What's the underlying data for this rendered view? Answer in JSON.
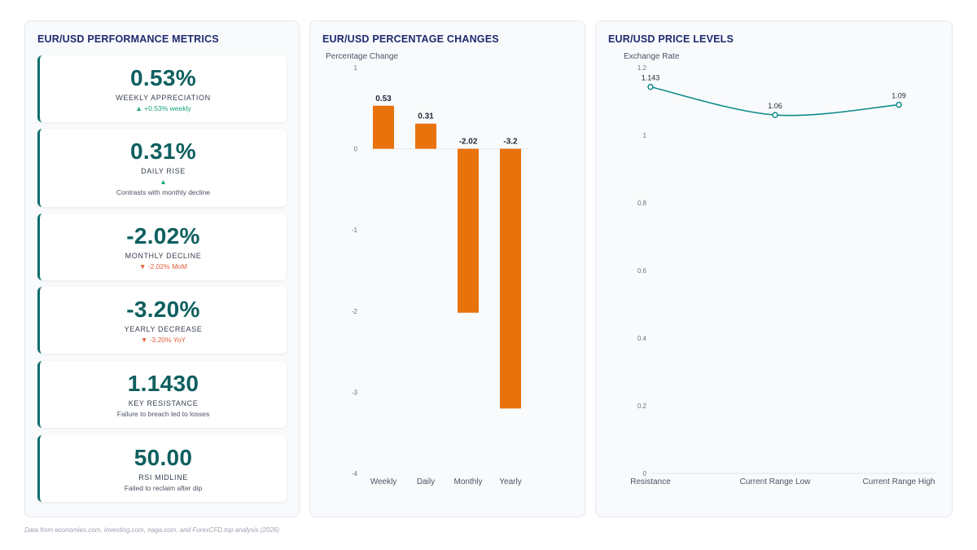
{
  "panels": {
    "metrics_title": "EUR/USD PERFORMANCE METRICS",
    "changes_title": "EUR/USD PERCENTAGE CHANGES",
    "levels_title": "EUR/USD PRICE LEVELS"
  },
  "cards": [
    {
      "value": "0.53%",
      "label": "WEEKLY APPRECIATION",
      "sub": "▲ +0.53% weekly",
      "trend": "up"
    },
    {
      "value": "0.31%",
      "label": "DAILY RISE",
      "sub": "▲",
      "sub2": "Contrasts with monthly decline",
      "trend": "up"
    },
    {
      "value": "-2.02%",
      "label": "MONTHLY DECLINE",
      "sub": "▼ -2.02% MoM",
      "trend": "down"
    },
    {
      "value": "-3.20%",
      "label": "YEARLY DECREASE",
      "sub": "▼ -3.20% YoY",
      "trend": "down"
    },
    {
      "value": "1.1430",
      "label": "KEY RESISTANCE",
      "sub": "Failure to breach led to losses",
      "trend": "neutral"
    },
    {
      "value": "50.00",
      "label": "RSI MIDLINE",
      "sub": "Failed to reclaim after dip",
      "trend": "neutral"
    }
  ],
  "chart_data": [
    {
      "type": "bar",
      "title": "EUR/USD PERCENTAGE CHANGES",
      "ylabel": "Percentage Change",
      "categories": [
        "Weekly",
        "Daily",
        "Monthly",
        "Yearly"
      ],
      "values": [
        0.53,
        0.31,
        -2.02,
        -3.2
      ],
      "value_labels": [
        "0.53",
        "0.31",
        "-2.02",
        "-3.2"
      ],
      "ylim": [
        -4,
        1
      ],
      "yticks": [
        "1",
        "0",
        "-1",
        "-2",
        "-3",
        "-4"
      ],
      "color": "#e8720c",
      "grid": false
    },
    {
      "type": "line",
      "title": "EUR/USD PRICE LEVELS",
      "ylabel": "Exchange Rate",
      "categories": [
        "Resistance",
        "Current Range Low",
        "Current Range High"
      ],
      "values": [
        1.143,
        1.06,
        1.09
      ],
      "value_labels": [
        "1.143",
        "1.06",
        "1.09"
      ],
      "ylim": [
        0,
        1.2
      ],
      "yticks": [
        "1.2",
        "1",
        "0.8",
        "0.6",
        "0.4",
        "0.2",
        "0"
      ],
      "color": "#0f8a8a",
      "grid": false
    }
  ],
  "footnote": "Data from economies.com, investing.com, naga.com, and ForexCFD.top analysis (2026)"
}
